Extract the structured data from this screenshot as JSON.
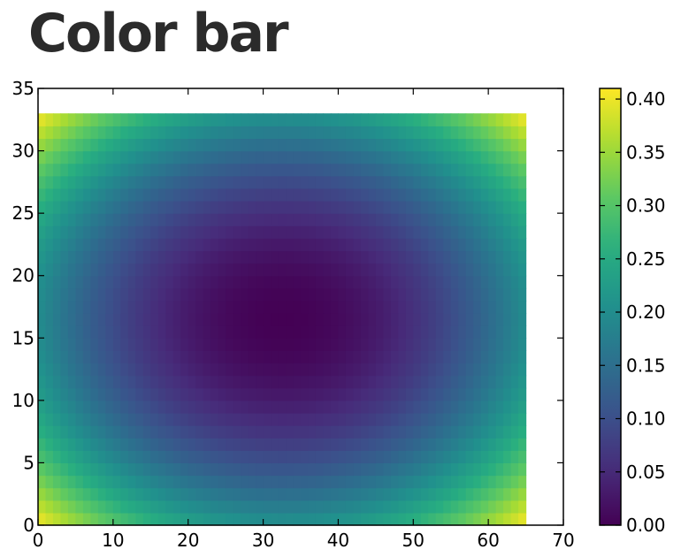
{
  "page": {
    "title": "Color bar"
  },
  "chart_data": {
    "type": "heatmap",
    "title": "",
    "xlabel": "",
    "ylabel": "",
    "xlim": [
      0,
      70
    ],
    "ylim": [
      0,
      35
    ],
    "x_ticks": [
      0,
      10,
      20,
      30,
      40,
      50,
      60,
      70
    ],
    "y_ticks": [
      0,
      5,
      10,
      15,
      20,
      25,
      30,
      35
    ],
    "grid": {
      "nx": 65,
      "ny": 33,
      "x_extent": [
        0,
        65
      ],
      "y_extent": [
        0,
        33
      ],
      "center": [
        32.5,
        16.5
      ],
      "value_at_center": 0.0,
      "value_at_corners": 0.41,
      "value_at_left_right_edge_middle": 0.2,
      "value_at_top_bottom_edge_middle": 0.21,
      "description": "value increases smoothly with distance from center"
    },
    "colorbar": {
      "colormap": "viridis",
      "range": [
        0.0,
        0.41
      ],
      "ticks": [
        "0.00",
        "0.05",
        "0.10",
        "0.15",
        "0.20",
        "0.25",
        "0.30",
        "0.35",
        "0.40"
      ]
    }
  }
}
